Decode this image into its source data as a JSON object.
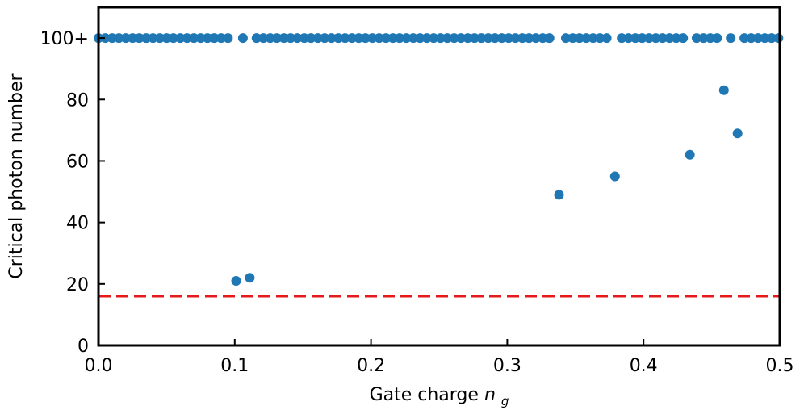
{
  "chart_data": {
    "type": "scatter",
    "xlabel": "Gate charge",
    "xlabel_symbol": "n",
    "xlabel_subscript": "g",
    "ylabel": "Critical photon number",
    "xlim": [
      0,
      0.5
    ],
    "ylim": [
      0,
      110
    ],
    "xticks": [
      0.0,
      0.1,
      0.2,
      0.3,
      0.4,
      0.5
    ],
    "xtick_labels": [
      "0.0",
      "0.1",
      "0.2",
      "0.3",
      "0.4",
      "0.5"
    ],
    "yticks": [
      0,
      20,
      40,
      60,
      80,
      100
    ],
    "ytick_labels": [
      "0",
      "20",
      "40",
      "60",
      "80",
      "100+"
    ],
    "grid": false,
    "series": [
      {
        "color": "#1f77b4",
        "points": [
          [
            0.0,
            100
          ],
          [
            0.005,
            100
          ],
          [
            0.01,
            100
          ],
          [
            0.015,
            100
          ],
          [
            0.02,
            100
          ],
          [
            0.025,
            100
          ],
          [
            0.03,
            100
          ],
          [
            0.035,
            100
          ],
          [
            0.04,
            100
          ],
          [
            0.045,
            100
          ],
          [
            0.05,
            100
          ],
          [
            0.055,
            100
          ],
          [
            0.06,
            100
          ],
          [
            0.065,
            100
          ],
          [
            0.07,
            100
          ],
          [
            0.075,
            100
          ],
          [
            0.08,
            100
          ],
          [
            0.085,
            100
          ],
          [
            0.09,
            100
          ],
          [
            0.095,
            100
          ],
          [
            0.101,
            21
          ],
          [
            0.106,
            100
          ],
          [
            0.111,
            22
          ],
          [
            0.116,
            100
          ],
          [
            0.121,
            100
          ],
          [
            0.126,
            100
          ],
          [
            0.131,
            100
          ],
          [
            0.136,
            100
          ],
          [
            0.141,
            100
          ],
          [
            0.146,
            100
          ],
          [
            0.151,
            100
          ],
          [
            0.156,
            100
          ],
          [
            0.161,
            100
          ],
          [
            0.166,
            100
          ],
          [
            0.171,
            100
          ],
          [
            0.176,
            100
          ],
          [
            0.181,
            100
          ],
          [
            0.186,
            100
          ],
          [
            0.191,
            100
          ],
          [
            0.196,
            100
          ],
          [
            0.201,
            100
          ],
          [
            0.206,
            100
          ],
          [
            0.211,
            100
          ],
          [
            0.216,
            100
          ],
          [
            0.221,
            100
          ],
          [
            0.226,
            100
          ],
          [
            0.231,
            100
          ],
          [
            0.236,
            100
          ],
          [
            0.241,
            100
          ],
          [
            0.246,
            100
          ],
          [
            0.251,
            100
          ],
          [
            0.256,
            100
          ],
          [
            0.261,
            100
          ],
          [
            0.266,
            100
          ],
          [
            0.271,
            100
          ],
          [
            0.276,
            100
          ],
          [
            0.281,
            100
          ],
          [
            0.286,
            100
          ],
          [
            0.291,
            100
          ],
          [
            0.296,
            100
          ],
          [
            0.301,
            100
          ],
          [
            0.306,
            100
          ],
          [
            0.311,
            100
          ],
          [
            0.316,
            100
          ],
          [
            0.321,
            100
          ],
          [
            0.326,
            100
          ],
          [
            0.331,
            100
          ],
          [
            0.338,
            49
          ],
          [
            0.343,
            100
          ],
          [
            0.348,
            100
          ],
          [
            0.353,
            100
          ],
          [
            0.358,
            100
          ],
          [
            0.363,
            100
          ],
          [
            0.368,
            100
          ],
          [
            0.373,
            100
          ],
          [
            0.379,
            55
          ],
          [
            0.384,
            100
          ],
          [
            0.389,
            100
          ],
          [
            0.394,
            100
          ],
          [
            0.399,
            100
          ],
          [
            0.404,
            100
          ],
          [
            0.409,
            100
          ],
          [
            0.414,
            100
          ],
          [
            0.419,
            100
          ],
          [
            0.424,
            100
          ],
          [
            0.429,
            100
          ],
          [
            0.434,
            62
          ],
          [
            0.439,
            100
          ],
          [
            0.444,
            100
          ],
          [
            0.449,
            100
          ],
          [
            0.454,
            100
          ],
          [
            0.459,
            83
          ],
          [
            0.464,
            100
          ],
          [
            0.469,
            69
          ],
          [
            0.474,
            100
          ],
          [
            0.479,
            100
          ],
          [
            0.484,
            100
          ],
          [
            0.489,
            100
          ],
          [
            0.494,
            100
          ],
          [
            0.499,
            100
          ]
        ]
      }
    ],
    "reference_line": {
      "y": 16,
      "color": "#e41a1c",
      "style": "dashed"
    }
  }
}
